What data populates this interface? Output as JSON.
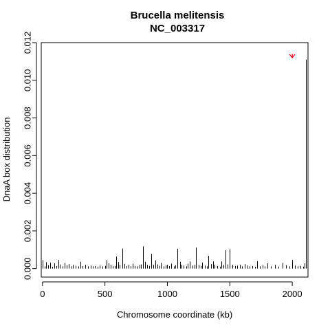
{
  "chart_data": {
    "type": "line",
    "title": "Brucella melitensis",
    "subtitle": "NC_003317",
    "xlabel": "Chromosome coordinate (kb)",
    "ylabel": "DnaA box distribution",
    "xlim": [
      -10,
      2126
    ],
    "ylim": [
      -0.00045,
      0.012
    ],
    "x_ticks": [
      0,
      500,
      1000,
      1500,
      2000
    ],
    "x_tick_labels": [
      "0",
      "500",
      "1000",
      "1500",
      "2000"
    ],
    "y_ticks": [
      0.0,
      0.002,
      0.004,
      0.006,
      0.008,
      0.01,
      0.012
    ],
    "y_tick_labels": [
      "0.000",
      "0.002",
      "0.004",
      "0.006",
      "0.008",
      "0.010",
      "0.012"
    ],
    "grid": false,
    "series": [
      {
        "x": [
          3,
          15,
          30,
          45,
          62,
          78,
          95,
          110,
          125,
          140,
          160,
          175,
          195,
          210,
          230,
          245,
          265,
          285,
          305,
          320,
          340,
          365,
          385,
          405,
          420,
          440,
          460,
          480,
          500,
          515,
          530,
          545,
          560,
          580,
          590,
          605,
          620,
          640,
          655,
          670,
          690,
          705,
          720,
          740,
          760,
          775,
          790,
          805,
          820,
          840,
          855,
          870,
          885,
          905,
          920,
          935,
          950,
          970,
          985,
          1000,
          1015,
          1030,
          1050,
          1065,
          1080,
          1100,
          1115,
          1130,
          1150,
          1165,
          1180,
          1200,
          1215,
          1230,
          1250,
          1265,
          1280,
          1300,
          1315,
          1330,
          1350,
          1365,
          1380,
          1400,
          1420,
          1435,
          1450,
          1465,
          1480,
          1500,
          1520,
          1540,
          1560,
          1580,
          1600,
          1620,
          1640,
          1660,
          1680,
          1700,
          1720,
          1740,
          1760,
          1780,
          1800,
          1830,
          1860,
          1890,
          1920,
          1950,
          1980,
          2000,
          2020,
          2045,
          2065,
          2085,
          2100,
          2111
        ],
        "values": [
          0.00045,
          0.00012,
          0.00034,
          0.00018,
          0.00032,
          0.0001,
          0.00028,
          0.00014,
          0.00046,
          0.00022,
          0.00012,
          0.0003,
          0.00018,
          0.00024,
          0.00012,
          0.0002,
          0.00015,
          0.00012,
          0.00036,
          0.00014,
          0.0002,
          0.00012,
          0.00016,
          0.00012,
          0.00014,
          0.0001,
          0.00016,
          0.00012,
          0.00014,
          0.00045,
          0.00028,
          0.0002,
          0.00012,
          0.00014,
          0.00064,
          0.00035,
          0.0002,
          0.00106,
          0.00025,
          0.00014,
          0.0002,
          0.00012,
          0.00026,
          0.00014,
          0.00012,
          0.0002,
          0.00022,
          0.00118,
          0.00036,
          0.0002,
          0.00014,
          0.00078,
          0.0002,
          0.00044,
          0.00022,
          0.00015,
          0.0003,
          0.00012,
          0.00018,
          0.0002,
          0.00014,
          0.00026,
          0.00012,
          0.00018,
          0.00105,
          0.00036,
          0.0002,
          0.00016,
          0.00012,
          0.00026,
          0.00038,
          0.00016,
          0.0002,
          0.00112,
          0.0002,
          0.00014,
          0.00032,
          0.00016,
          0.00012,
          0.00068,
          0.00024,
          0.00038,
          0.0002,
          0.00014,
          0.0001,
          0.00038,
          0.0002,
          0.00098,
          0.00022,
          0.00103,
          0.0002,
          0.00014,
          0.00016,
          0.0002,
          0.00012,
          0.00024,
          0.00016,
          0.00012,
          0.00014,
          0.0001,
          0.0004,
          0.00012,
          0.00018,
          0.00012,
          0.00028,
          0.00012,
          0.0002,
          0.0001,
          0.0003,
          0.00018,
          0.00012,
          0.00046,
          0.00016,
          0.00012,
          0.00014,
          0.0001,
          0.00028,
          0.0111
        ]
      }
    ],
    "annotations": [
      {
        "type": "arrow",
        "x": 2000,
        "y_from": 0.0114,
        "y_to": 0.0112,
        "color": "#e0001a"
      }
    ]
  }
}
